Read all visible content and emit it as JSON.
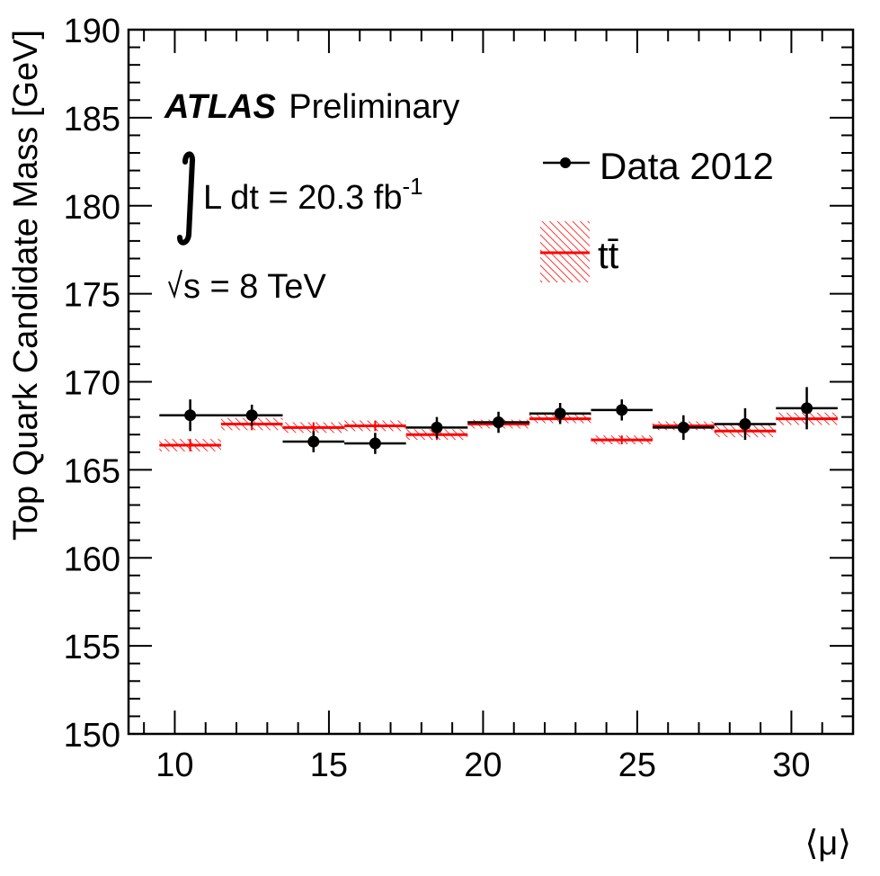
{
  "chart_data": {
    "type": "scatter",
    "title": "",
    "xlabel": "⟨μ⟩",
    "ylabel": "Top Quark Candidate Mass [GeV]",
    "xlim": [
      8.5,
      32
    ],
    "ylim": [
      150,
      190
    ],
    "x_ticks": [
      "10",
      "15",
      "20",
      "25",
      "30"
    ],
    "y_ticks": [
      "150",
      "155",
      "160",
      "165",
      "170",
      "175",
      "180",
      "185",
      "190"
    ],
    "bin_edges": [
      9.5,
      11.5,
      13.5,
      15.5,
      17.5,
      19.5,
      21.5,
      23.5,
      25.5,
      27.5,
      29.5,
      31.5
    ],
    "series": [
      {
        "name": "Data 2012",
        "color": "#000000",
        "x": [
          10.5,
          12.5,
          14.5,
          16.5,
          18.5,
          20.5,
          22.5,
          24.5,
          26.5,
          28.5,
          30.5
        ],
        "values": [
          168.1,
          168.1,
          166.6,
          166.5,
          167.4,
          167.7,
          168.2,
          168.4,
          167.4,
          167.6,
          168.5
        ],
        "errors": [
          0.9,
          0.6,
          0.6,
          0.6,
          0.6,
          0.6,
          0.6,
          0.6,
          0.7,
          0.9,
          1.2
        ]
      },
      {
        "name": "tt̄",
        "color": "#ff0000",
        "x": [
          10.5,
          12.5,
          14.5,
          16.5,
          18.5,
          20.5,
          22.5,
          24.5,
          26.5,
          28.5,
          30.5
        ],
        "values": [
          166.4,
          167.6,
          167.4,
          167.5,
          167.0,
          167.6,
          167.9,
          166.7,
          167.5,
          167.2,
          167.9
        ],
        "errors": [
          0.35,
          0.35,
          0.3,
          0.3,
          0.3,
          0.25,
          0.25,
          0.25,
          0.25,
          0.35,
          0.35
        ]
      }
    ],
    "legend": {
      "position": "top-right",
      "entries": [
        "Data 2012",
        "tt̄"
      ]
    },
    "annotations": {
      "experiment": "ATLAS",
      "status": "Preliminary",
      "lumi_text": "L dt = 20.3 fb",
      "lumi_exponent": "-1",
      "energy_text": "s = 8 TeV"
    }
  }
}
